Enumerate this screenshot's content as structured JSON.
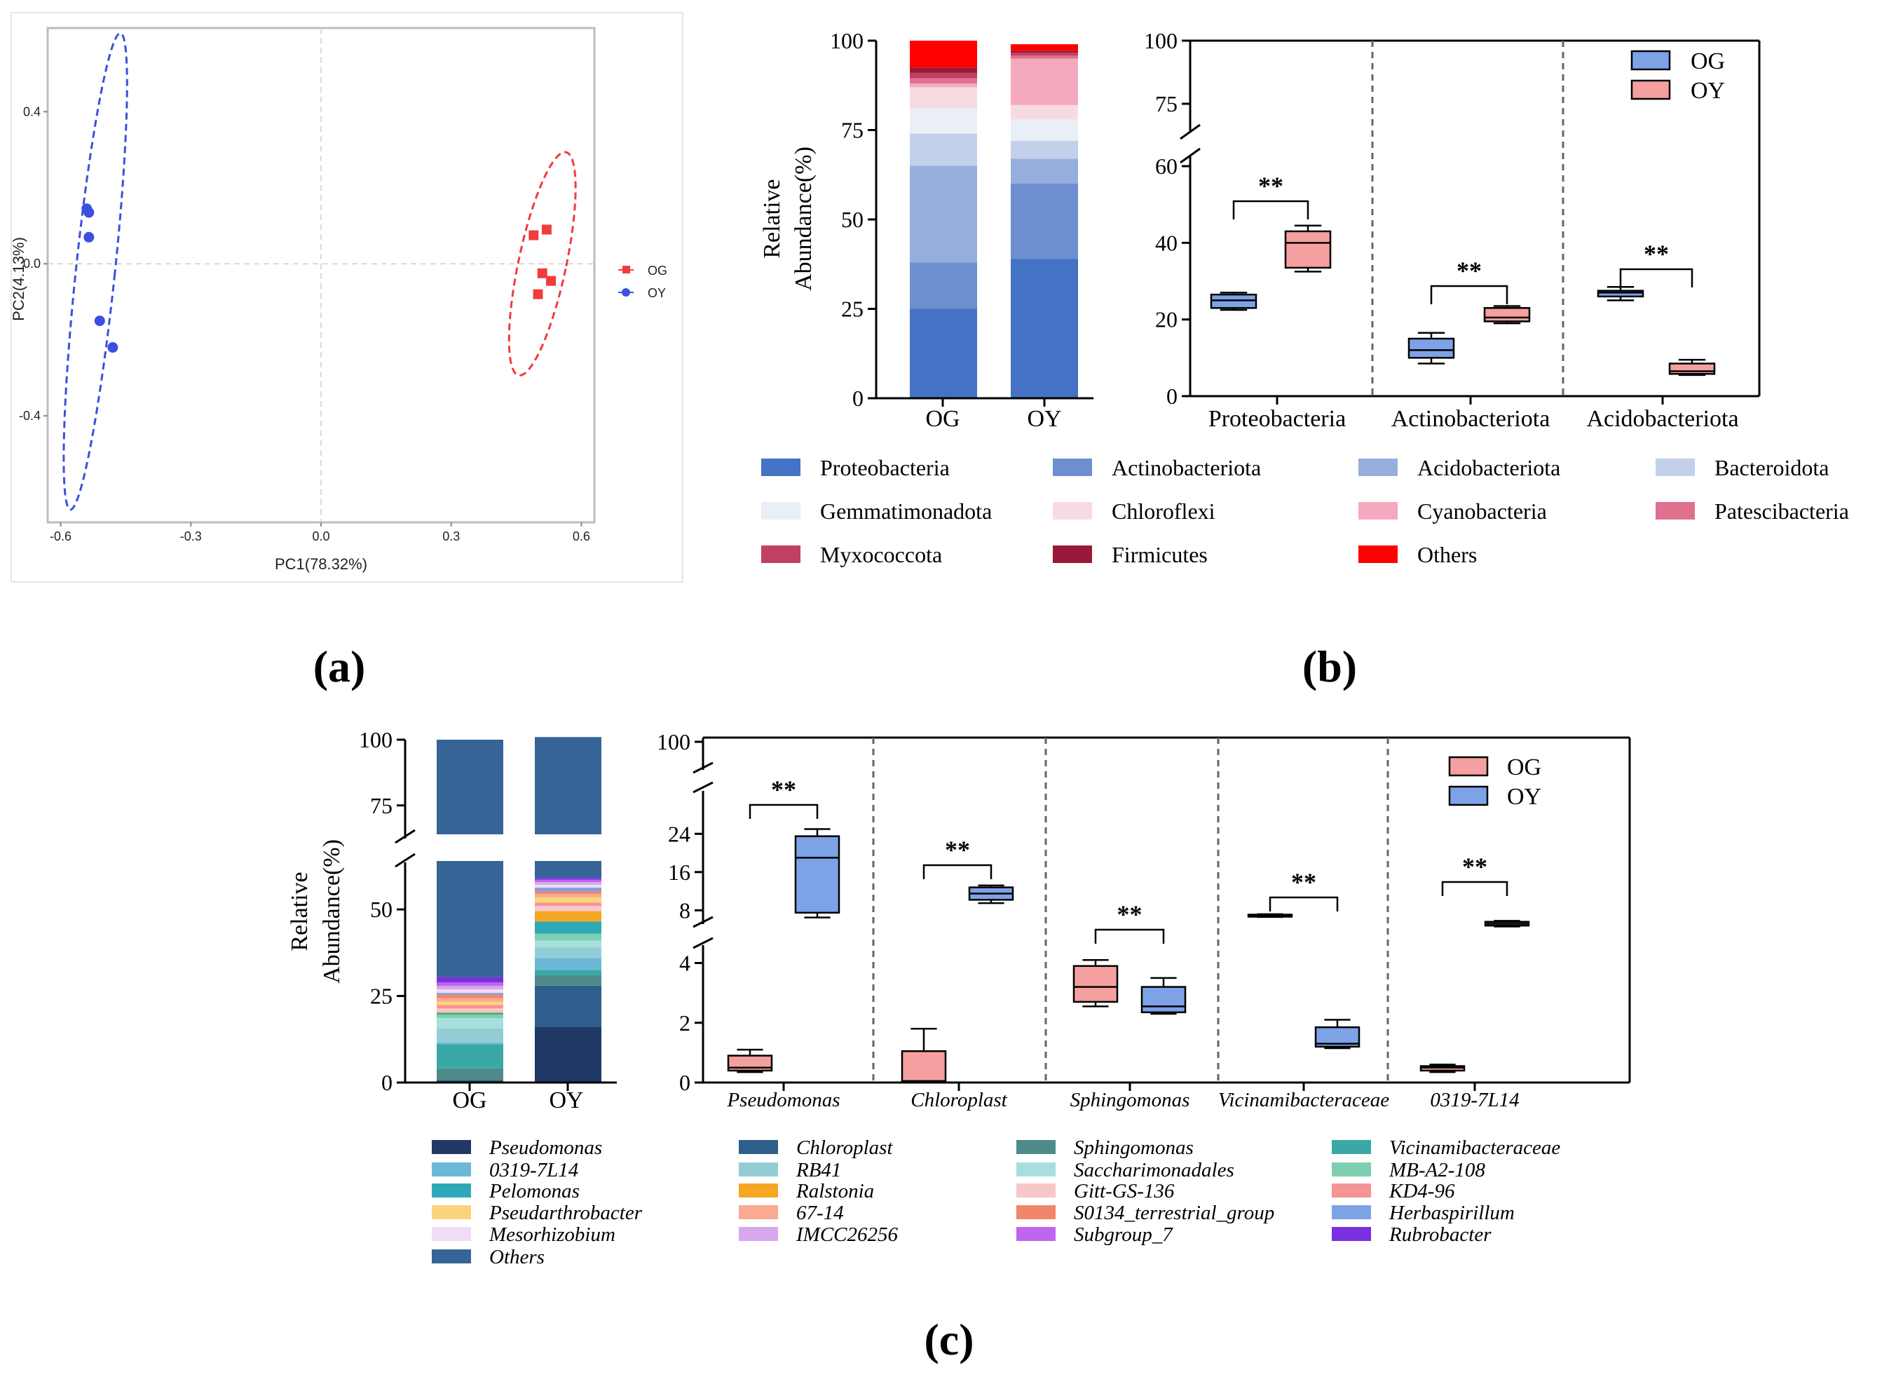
{
  "panels": {
    "a": "(a)",
    "b": "(b)",
    "c": "(c)"
  },
  "chart_data": [
    {
      "id": "a",
      "type": "scatter",
      "title": "",
      "xlabel": "PC1(78.32%)",
      "ylabel": "PC2(4.13%)",
      "xlim": [
        -0.63,
        0.63
      ],
      "ylim": [
        -0.68,
        0.62
      ],
      "xticks": [
        -0.6,
        -0.3,
        0.0,
        0.3,
        0.6
      ],
      "yticks": [
        -0.4,
        0.0,
        0.4
      ],
      "legend_position": "right",
      "series": [
        {
          "name": "OG",
          "color": "#f03c3c",
          "marker": "square",
          "x": [
            0.49,
            0.52,
            0.51,
            0.5,
            0.53
          ],
          "y": [
            0.075,
            0.09,
            -0.025,
            -0.08,
            -0.045
          ],
          "ellipse": {
            "cx": 0.51,
            "cy": 0.0,
            "rx": 0.055,
            "ry": 0.3,
            "angle": 12
          }
        },
        {
          "name": "OY",
          "color": "#3b4fe0",
          "marker": "circle",
          "x": [
            -0.54,
            -0.535,
            -0.535,
            -0.51,
            -0.48
          ],
          "y": [
            0.145,
            0.135,
            0.07,
            -0.15,
            -0.22
          ],
          "ellipse": {
            "cx": -0.52,
            "cy": -0.02,
            "rx": 0.045,
            "ry": 0.63,
            "angle": 6
          }
        }
      ]
    },
    {
      "id": "b-stack",
      "type": "bar",
      "stacked": true,
      "ylabel_line1": "Relative",
      "ylabel_line2": "Abundance(%)",
      "ylim": [
        0,
        100
      ],
      "yticks": [
        0,
        25,
        50,
        75,
        100
      ],
      "categories": [
        "OG",
        "OY"
      ],
      "series": [
        {
          "name": "Proteobacteria",
          "color": "#4472c4",
          "values": [
            25,
            39
          ]
        },
        {
          "name": "Actinobacteriota",
          "color": "#6d8fd0",
          "values": [
            13,
            21
          ]
        },
        {
          "name": "Acidobacteriota",
          "color": "#97aedd",
          "values": [
            27,
            7
          ]
        },
        {
          "name": "Bacteroidota",
          "color": "#c3d0ea",
          "values": [
            9,
            5
          ]
        },
        {
          "name": "Gemmatimonadota",
          "color": "#eaeef7",
          "values": [
            7,
            6
          ]
        },
        {
          "name": "Chloroflexi",
          "color": "#f7dbe2",
          "values": [
            6,
            4
          ]
        },
        {
          "name": "Cyanobacteria",
          "color": "#f4a9bf",
          "values": [
            1,
            13
          ]
        },
        {
          "name": "Patescibacteria",
          "color": "#e0708f",
          "values": [
            1.5,
            0.8
          ]
        },
        {
          "name": "Myxococcota",
          "color": "#c04060",
          "values": [
            1.5,
            0.8
          ]
        },
        {
          "name": "Firmicutes",
          "color": "#9a1838",
          "values": [
            1.5,
            0.6
          ]
        },
        {
          "name": "Others",
          "color": "#ff0000",
          "values": [
            7.5,
            1.8
          ]
        }
      ]
    },
    {
      "id": "b-box",
      "type": "box",
      "categories": [
        "Proteobacteria",
        "Actinobacteriota",
        "Acidobacteriota"
      ],
      "yticks_lower": [
        0,
        20,
        40,
        60
      ],
      "yticks_upper": [
        75,
        100
      ],
      "significance": "**",
      "series": [
        {
          "name": "OG",
          "color": "#7da2e6",
          "boxes": [
            [
              22.5,
              23,
              25,
              26.5,
              27
            ],
            [
              8.5,
              10,
              12,
              15,
              16.5
            ],
            [
              25,
              26,
              27,
              27.5,
              28.5
            ]
          ]
        },
        {
          "name": "OY",
          "color": "#f4a0a0",
          "boxes": [
            [
              32.5,
              33.5,
              40,
              43,
              44.5
            ],
            [
              19,
              19.5,
              20.5,
              23,
              23.5
            ],
            [
              5.5,
              5.8,
              6.5,
              8.5,
              9.5
            ]
          ]
        }
      ]
    },
    {
      "id": "c-stack",
      "type": "bar",
      "stacked": true,
      "ylabel_line1": "Relative",
      "ylabel_line2": "Abundance(%)",
      "yticks_lower": [
        0,
        25,
        50
      ],
      "yticks_upper": [
        75,
        100
      ],
      "categories": [
        "OG",
        "OY"
      ],
      "series": [
        {
          "name": "Pseudomonas",
          "color": "#1f3864",
          "values": [
            0.5,
            16
          ]
        },
        {
          "name": "Chloroplast",
          "color": "#2e5f8c",
          "values": [
            0.1,
            12
          ]
        },
        {
          "name": "Sphingomonas",
          "color": "#4f8a8b",
          "values": [
            3.5,
            3
          ]
        },
        {
          "name": "Vicinamibacteraceae",
          "color": "#3aa9a6",
          "values": [
            7,
            1.5
          ]
        },
        {
          "name": "0319-7L14",
          "color": "#6cb8d8",
          "values": [
            0.5,
            3.5
          ]
        },
        {
          "name": "RB41",
          "color": "#92cdd6",
          "values": [
            4,
            3
          ]
        },
        {
          "name": "Saccharimonadales",
          "color": "#a8dfdc",
          "values": [
            3,
            2
          ]
        },
        {
          "name": "MB-A2-108",
          "color": "#7ecfb0",
          "values": [
            1,
            2
          ]
        },
        {
          "name": "Pelomonas",
          "color": "#2fa9b7",
          "values": [
            0.5,
            3.5
          ]
        },
        {
          "name": "Ralstonia",
          "color": "#f5a623",
          "values": [
            0.3,
            3
          ]
        },
        {
          "name": "Gitt-GS-136",
          "color": "#f8c7c7",
          "values": [
            1,
            1.5
          ]
        },
        {
          "name": "KD4-96",
          "color": "#f59494",
          "values": [
            1,
            1
          ]
        },
        {
          "name": "Pseudarthrobacter",
          "color": "#fbd37a",
          "values": [
            1,
            1.5
          ]
        },
        {
          "name": "67-14",
          "color": "#f9aa90",
          "values": [
            1,
            1
          ]
        },
        {
          "name": "S0134_terrestrial_group",
          "color": "#f0876a",
          "values": [
            1,
            0.8
          ]
        },
        {
          "name": "Herbaspirillum",
          "color": "#7da2e6",
          "values": [
            0.5,
            1
          ]
        },
        {
          "name": "Mesorhizobium",
          "color": "#f1ddf5",
          "values": [
            1,
            0.8
          ]
        },
        {
          "name": "IMCC26256",
          "color": "#d8a8ee",
          "values": [
            1,
            0.8
          ]
        },
        {
          "name": "Subgroup_7",
          "color": "#c065ee",
          "values": [
            1,
            0.7
          ]
        },
        {
          "name": "Rubrobacter",
          "color": "#7a2fe0",
          "values": [
            1.5,
            0.5
          ]
        },
        {
          "name": "Others",
          "color": "#376496",
          "values": [
            69.6,
            41.9
          ]
        }
      ]
    },
    {
      "id": "c-box",
      "type": "box",
      "categories": [
        "Pseudomonas",
        "Chloroplast",
        "Sphingomonas",
        "Vicinamibacteraceae",
        "0319-7L14"
      ],
      "yticks_lower": [
        0,
        2,
        4
      ],
      "yticks_mid": [
        8,
        16,
        24
      ],
      "yticks_upper": [
        100
      ],
      "significance": "**",
      "series": [
        {
          "name": "OG",
          "color": "#f4a0a0",
          "boxes": [
            [
              0.35,
              0.4,
              0.5,
              0.9,
              1.1
            ],
            [
              0,
              0,
              0.05,
              1.05,
              1.8
            ],
            [
              2.55,
              2.7,
              3.2,
              3.9,
              4.1
            ],
            [
              6.6,
              6.7,
              6.9,
              7.1,
              7.2
            ],
            [
              0.35,
              0.4,
              0.5,
              0.55,
              0.6
            ]
          ]
        },
        {
          "name": "OY",
          "color": "#7da2e6",
          "boxes": [
            [
              6.5,
              7.5,
              19,
              23.5,
              25
            ],
            [
              9.5,
              10.2,
              11.5,
              12.8,
              13.2
            ],
            [
              2.3,
              2.35,
              2.55,
              3.2,
              3.5
            ],
            [
              1.15,
              1.2,
              1.3,
              1.85,
              2.1
            ],
            [
              4.6,
              4.8,
              5.2,
              5.6,
              5.8
            ]
          ]
        }
      ]
    }
  ]
}
